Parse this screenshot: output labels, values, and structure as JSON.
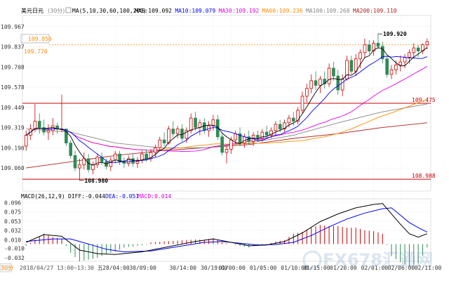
{
  "header": {
    "symbol": "美元日元",
    "period": "(30分)",
    "ma_params": "MA(5,10,30,60,100,200)",
    "ma_items": [
      {
        "label": "MA5:109.092",
        "color": "#000000"
      },
      {
        "label": "MA10:109.079",
        "color": "#0000ff"
      },
      {
        "label": "MA30:109.192",
        "color": "#e600e6"
      },
      {
        "label": "MA60:109.236",
        "color": "#ff8c00"
      },
      {
        "label": "MA100:109.268",
        "color": "#888888"
      },
      {
        "label": "MA200:109.110",
        "color": "#b22222"
      }
    ]
  },
  "price_axis": {
    "ticks": [
      "109.967",
      "109.837",
      "109.708",
      "109.578",
      "109.449",
      "109.319",
      "109.190",
      "109.060"
    ],
    "range": [
      108.93,
      110.02
    ]
  },
  "badges": {
    "current_price": "109.850",
    "left_level": "109.770"
  },
  "levels": [
    {
      "label": "109.475",
      "value": 109.475,
      "color": "#cc0000"
    },
    {
      "label": "108.988",
      "value": 108.988,
      "color": "#cc0000"
    }
  ],
  "annotations": [
    {
      "label": "109.920",
      "value": 109.92,
      "index": 79
    },
    {
      "label": "108.980",
      "value": 108.98,
      "index": 12
    }
  ],
  "macd_header": {
    "params": "MACD(26,12,9)",
    "diff": "DIFF:-0.044",
    "dea": "DEA:-0.051",
    "macd": "MACD:0.014"
  },
  "macd_axis": {
    "ticks": [
      "0.096",
      "0.075",
      "0.053",
      "0.032",
      "0.010",
      "-0.010",
      "-0.032"
    ],
    "range": [
      -0.04,
      0.105
    ]
  },
  "time_axis": {
    "period_tab": "30分",
    "cursor_label": "2018/04/27 13:00~13:30 五",
    "ticks": [
      {
        "label": "28/04:00",
        "index": 20
      },
      {
        "label": "30/09:00",
        "index": 26
      },
      {
        "label": "30/14:00",
        "index": 35
      },
      {
        "label": "30/19:00",
        "index": 42
      },
      {
        "label": "01/00:00",
        "index": 46
      },
      {
        "label": "01/05:00",
        "index": 53
      },
      {
        "label": "01/10:00",
        "index": 60
      },
      {
        "label": "01/15:00",
        "index": 65
      },
      {
        "label": "01/20:00",
        "index": 71
      },
      {
        "label": "02/01:00",
        "index": 78
      },
      {
        "label": "02/06:00",
        "index": 84
      },
      {
        "label": "02/11:00",
        "index": 90
      }
    ]
  },
  "watermark": {
    "brand": "FX678",
    "chinese": "汇通网"
  },
  "colors": {
    "up": "#cc0000",
    "down": "#2e8b57",
    "ma5": "#000000",
    "ma10": "#0000ff",
    "ma30": "#e600e6",
    "ma60": "#ff8c00",
    "ma100": "#888888",
    "ma200": "#b22222",
    "diff": "#000000",
    "dea": "#0000ff"
  },
  "chart_data": {
    "type": "candlestick",
    "candles": [
      [
        109.2,
        109.3,
        109.17,
        109.27
      ],
      [
        109.27,
        109.34,
        109.24,
        109.31
      ],
      [
        109.31,
        109.47,
        109.29,
        109.36
      ],
      [
        109.36,
        109.41,
        109.28,
        109.32
      ],
      [
        109.32,
        109.37,
        109.27,
        109.29
      ],
      [
        109.29,
        109.34,
        109.24,
        109.3
      ],
      [
        109.3,
        109.38,
        109.27,
        109.33
      ],
      [
        109.33,
        109.35,
        109.28,
        109.31
      ],
      [
        109.31,
        109.53,
        109.29,
        109.31
      ],
      [
        109.31,
        109.31,
        109.2,
        109.22
      ],
      [
        109.22,
        109.24,
        109.12,
        109.14
      ],
      [
        109.14,
        109.17,
        109.04,
        109.06
      ],
      [
        109.06,
        109.12,
        108.98,
        109.08
      ],
      [
        109.08,
        109.16,
        109.05,
        109.12
      ],
      [
        109.12,
        109.15,
        109.03,
        109.05
      ],
      [
        109.05,
        109.1,
        109.02,
        109.08
      ],
      [
        109.08,
        109.15,
        109.06,
        109.13
      ],
      [
        109.13,
        109.16,
        109.08,
        109.1
      ],
      [
        109.1,
        109.12,
        109.05,
        109.07
      ],
      [
        109.07,
        109.13,
        109.04,
        109.11
      ],
      [
        109.11,
        109.17,
        109.09,
        109.15
      ],
      [
        109.15,
        109.17,
        109.08,
        109.1
      ],
      [
        109.1,
        109.13,
        109.06,
        109.09
      ],
      [
        109.09,
        109.14,
        109.07,
        109.12
      ],
      [
        109.12,
        109.15,
        109.07,
        109.09
      ],
      [
        109.09,
        109.13,
        109.06,
        109.11
      ],
      [
        109.11,
        109.17,
        109.09,
        109.15
      ],
      [
        109.15,
        109.18,
        109.1,
        109.12
      ],
      [
        109.12,
        109.18,
        109.1,
        109.16
      ],
      [
        109.16,
        109.21,
        109.13,
        109.19
      ],
      [
        109.19,
        109.26,
        109.17,
        109.24
      ],
      [
        109.24,
        109.29,
        109.2,
        109.22
      ],
      [
        109.22,
        109.33,
        109.21,
        109.31
      ],
      [
        109.31,
        109.36,
        109.26,
        109.28
      ],
      [
        109.28,
        109.33,
        109.25,
        109.31
      ],
      [
        109.31,
        109.34,
        109.23,
        109.25
      ],
      [
        109.25,
        109.32,
        109.22,
        109.3
      ],
      [
        109.3,
        109.41,
        109.28,
        109.38
      ],
      [
        109.38,
        109.42,
        109.3,
        109.32
      ],
      [
        109.32,
        109.37,
        109.27,
        109.35
      ],
      [
        109.35,
        109.38,
        109.28,
        109.3
      ],
      [
        109.3,
        109.36,
        109.26,
        109.33
      ],
      [
        109.33,
        109.4,
        109.3,
        109.37
      ],
      [
        109.37,
        109.4,
        109.24,
        109.26
      ],
      [
        109.26,
        109.28,
        109.14,
        109.16
      ],
      [
        109.16,
        109.2,
        109.09,
        109.18
      ],
      [
        109.18,
        109.26,
        109.15,
        109.24
      ],
      [
        109.24,
        109.3,
        109.22,
        109.28
      ],
      [
        109.28,
        109.32,
        109.2,
        109.22
      ],
      [
        109.22,
        109.28,
        109.19,
        109.26
      ],
      [
        109.26,
        109.3,
        109.21,
        109.23
      ],
      [
        109.23,
        109.29,
        109.2,
        109.27
      ],
      [
        109.27,
        109.3,
        109.23,
        109.25
      ],
      [
        109.25,
        109.31,
        109.23,
        109.29
      ],
      [
        109.29,
        109.33,
        109.25,
        109.27
      ],
      [
        109.27,
        109.32,
        109.25,
        109.3
      ],
      [
        109.3,
        109.36,
        109.27,
        109.34
      ],
      [
        109.34,
        109.37,
        109.29,
        109.31
      ],
      [
        109.31,
        109.37,
        109.29,
        109.35
      ],
      [
        109.35,
        109.4,
        109.32,
        109.38
      ],
      [
        109.38,
        109.42,
        109.33,
        109.36
      ],
      [
        109.36,
        109.45,
        109.34,
        109.43
      ],
      [
        109.43,
        109.55,
        109.41,
        109.52
      ],
      [
        109.52,
        109.6,
        109.48,
        109.57
      ],
      [
        109.57,
        109.66,
        109.54,
        109.62
      ],
      [
        109.62,
        109.68,
        109.56,
        109.59
      ],
      [
        109.59,
        109.65,
        109.54,
        109.63
      ],
      [
        109.63,
        109.68,
        109.57,
        109.6
      ],
      [
        109.6,
        109.73,
        109.58,
        109.7
      ],
      [
        109.7,
        109.74,
        109.62,
        109.65
      ],
      [
        109.65,
        109.69,
        109.53,
        109.56
      ],
      [
        109.56,
        109.66,
        109.52,
        109.63
      ],
      [
        109.63,
        109.78,
        109.62,
        109.75
      ],
      [
        109.75,
        109.78,
        109.66,
        109.68
      ],
      [
        109.68,
        109.79,
        109.65,
        109.76
      ],
      [
        109.76,
        109.82,
        109.7,
        109.8
      ],
      [
        109.8,
        109.89,
        109.77,
        109.85
      ],
      [
        109.85,
        109.88,
        109.79,
        109.81
      ],
      [
        109.81,
        109.88,
        109.78,
        109.86
      ],
      [
        109.86,
        109.92,
        109.82,
        109.84
      ],
      [
        109.84,
        109.87,
        109.73,
        109.76
      ],
      [
        109.76,
        109.78,
        109.64,
        109.66
      ],
      [
        109.66,
        109.72,
        109.63,
        109.69
      ],
      [
        109.69,
        109.75,
        109.66,
        109.72
      ],
      [
        109.72,
        109.78,
        109.68,
        109.74
      ],
      [
        109.74,
        109.79,
        109.7,
        109.77
      ],
      [
        109.77,
        109.82,
        109.73,
        109.8
      ],
      [
        109.8,
        109.86,
        109.76,
        109.83
      ],
      [
        109.83,
        109.85,
        109.77,
        109.81
      ],
      [
        109.81,
        109.86,
        109.79,
        109.85
      ],
      [
        109.85,
        109.89,
        109.82,
        109.87
      ]
    ],
    "ma100": [
      [
        0,
        109.31
      ],
      [
        10,
        109.29
      ],
      [
        20,
        109.22
      ],
      [
        30,
        109.19
      ],
      [
        40,
        109.19
      ],
      [
        50,
        109.22
      ],
      [
        60,
        109.27
      ],
      [
        70,
        109.35
      ],
      [
        80,
        109.42
      ],
      [
        90,
        109.47
      ]
    ],
    "ma200": [
      [
        0,
        109.06
      ],
      [
        10,
        109.1
      ],
      [
        20,
        109.14
      ],
      [
        30,
        109.17
      ],
      [
        40,
        109.19
      ],
      [
        50,
        109.21
      ],
      [
        60,
        109.25
      ],
      [
        70,
        109.28
      ],
      [
        80,
        109.32
      ],
      [
        90,
        109.35
      ]
    ],
    "macd": {
      "diff": [
        [
          0,
          0.004
        ],
        [
          4,
          0.022
        ],
        [
          8,
          0.018
        ],
        [
          12,
          -0.014
        ],
        [
          16,
          -0.022
        ],
        [
          20,
          -0.024
        ],
        [
          26,
          -0.018
        ],
        [
          32,
          -0.006
        ],
        [
          38,
          0.006
        ],
        [
          42,
          0.012
        ],
        [
          46,
          0.004
        ],
        [
          50,
          -0.004
        ],
        [
          54,
          -0.002
        ],
        [
          58,
          0.006
        ],
        [
          62,
          0.026
        ],
        [
          66,
          0.052
        ],
        [
          70,
          0.07
        ],
        [
          74,
          0.084
        ],
        [
          78,
          0.092
        ],
        [
          80,
          0.094
        ],
        [
          84,
          0.046
        ],
        [
          86,
          0.024
        ],
        [
          88,
          0.016
        ],
        [
          90,
          0.024
        ]
      ],
      "dea": [
        [
          0,
          0.006
        ],
        [
          6,
          0.012
        ],
        [
          10,
          0.012
        ],
        [
          14,
          0.0
        ],
        [
          18,
          -0.012
        ],
        [
          22,
          -0.018
        ],
        [
          28,
          -0.016
        ],
        [
          34,
          -0.006
        ],
        [
          40,
          0.004
        ],
        [
          44,
          0.006
        ],
        [
          48,
          0.002
        ],
        [
          52,
          -0.002
        ],
        [
          56,
          -0.001
        ],
        [
          60,
          0.004
        ],
        [
          64,
          0.02
        ],
        [
          68,
          0.04
        ],
        [
          72,
          0.058
        ],
        [
          76,
          0.072
        ],
        [
          80,
          0.082
        ],
        [
          82,
          0.084
        ],
        [
          86,
          0.05
        ],
        [
          88,
          0.038
        ],
        [
          90,
          0.028
        ]
      ]
    }
  }
}
